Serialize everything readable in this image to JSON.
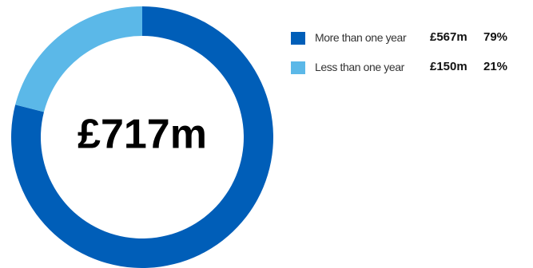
{
  "chart_data": {
    "type": "pie",
    "center_label": "£717m",
    "slices": [
      {
        "label": "More than one year",
        "value_label": "£567m",
        "percent": 79,
        "percent_label": "79%",
        "color": "#005EB8"
      },
      {
        "label": "Less than one year",
        "value_label": "£150m",
        "percent": 21,
        "percent_label": "21%",
        "color": "#5BB8E8"
      }
    ],
    "legend_position": "right"
  }
}
